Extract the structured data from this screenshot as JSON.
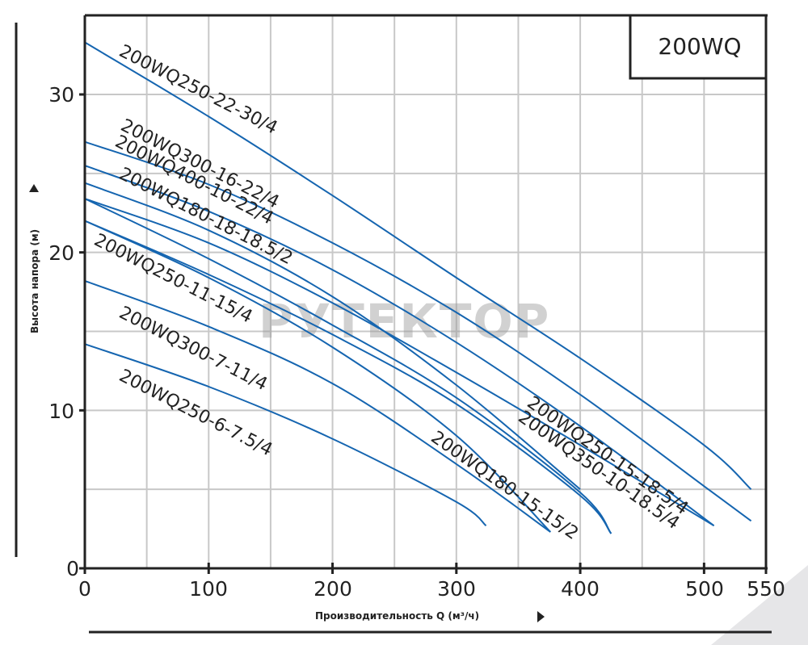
{
  "badge": {
    "label": "200WQ"
  },
  "watermark": {
    "text": "РУТЕКТОР"
  },
  "colors": {
    "curve": "#1565b0",
    "grid": "#c8c8c8",
    "axis": "#222222",
    "watermark": "#9a9a9a"
  },
  "chart_data": {
    "type": "line",
    "title": "200WQ",
    "xlabel": "Производительность Q (м³/ч)",
    "ylabel": "Высота напора (м)",
    "xlim": [
      0,
      550
    ],
    "ylim": [
      0,
      35
    ],
    "x_ticks": [
      0,
      100,
      200,
      300,
      400,
      500,
      550
    ],
    "y_ticks": [
      0,
      10,
      20,
      30
    ],
    "x_grid_step": 50,
    "y_grid_step": 5,
    "grid": true,
    "legend": "inline labels along curves",
    "series": [
      {
        "name": "200WQ250-22-30/4",
        "x": [
          0,
          100,
          200,
          300,
          400,
          500,
          538
        ],
        "y": [
          33.3,
          28.6,
          23.6,
          18.4,
          13.3,
          7.8,
          5.0
        ]
      },
      {
        "name": "200WQ300-16-22/4",
        "x": [
          0,
          100,
          200,
          300,
          400,
          500,
          538
        ],
        "y": [
          27.0,
          24.3,
          20.6,
          16.2,
          11.0,
          5.2,
          3.0
        ]
      },
      {
        "name": "200WQ400-10-22/4",
        "x": [
          0,
          100,
          200,
          300,
          400,
          508
        ],
        "y": [
          25.5,
          22.6,
          18.9,
          14.3,
          9.0,
          2.7
        ]
      },
      {
        "name": "200WQ180-18-18.5/2",
        "x": [
          0,
          100,
          200,
          300,
          400
        ],
        "y": [
          24.4,
          21.4,
          17.2,
          11.6,
          5.0
        ]
      },
      {
        "name": "200WQ250-15-18.5/4",
        "x": [
          0,
          100,
          200,
          300,
          400,
          508
        ],
        "y": [
          23.4,
          20.6,
          16.8,
          12.4,
          7.8,
          2.7
        ]
      },
      {
        "name": "200WQ350-10-18.5/4",
        "x": [
          0,
          100,
          200,
          300,
          400,
          425
        ],
        "y": [
          23.4,
          19.6,
          15.4,
          10.8,
          4.8,
          2.2
        ]
      },
      {
        "name": "200WQ250-11-15/4",
        "x": [
          0,
          100,
          200,
          300,
          400,
          425
        ],
        "y": [
          22.0,
          18.6,
          14.8,
          10.4,
          4.6,
          2.2
        ]
      },
      {
        "name": "200WQ180-15-15/2",
        "x": [
          0,
          100,
          200,
          300,
          376
        ],
        "y": [
          22.0,
          18.4,
          14.0,
          8.4,
          2.3
        ]
      },
      {
        "name": "200WQ300-7-11/4",
        "x": [
          0,
          100,
          200,
          300,
          376
        ],
        "y": [
          18.2,
          15.3,
          11.7,
          6.6,
          2.3
        ]
      },
      {
        "name": "200WQ250-6-7.5/4",
        "x": [
          0,
          100,
          200,
          300,
          324
        ],
        "y": [
          14.2,
          11.5,
          8.2,
          4.2,
          2.7
        ]
      }
    ]
  },
  "labels": {
    "l1": "200WQ250-22-30/4",
    "l2": "200WQ300-16-22/4",
    "l3": "200WQ400-10-22/4",
    "l4": "200WQ180-18-18.5/2",
    "l5": "200WQ250-11-15/4",
    "l6": "200WQ300-7-11/4",
    "l7": "200WQ250-6-7.5/4",
    "l8": "200WQ180-15-15/2",
    "l9": "200WQ250-15-18.5/4",
    "l10": "200WQ350-10-18.5/4"
  },
  "axes": {
    "x_title": "Производительность Q (м³/ч)",
    "y_title": "Высота напора (м)",
    "x_ticks": [
      "0",
      "100",
      "200",
      "300",
      "400",
      "500",
      "550"
    ],
    "y_ticks": [
      "0",
      "10",
      "20",
      "30"
    ]
  }
}
